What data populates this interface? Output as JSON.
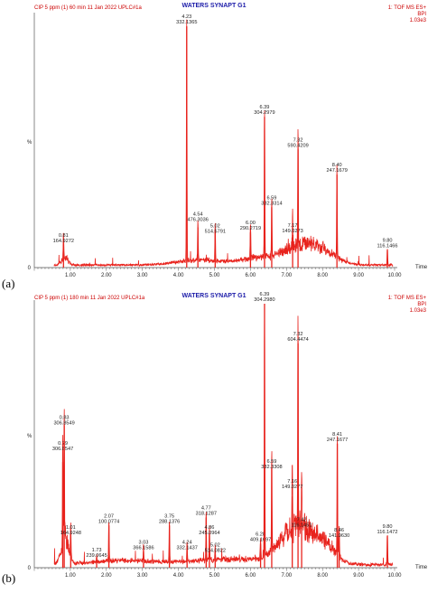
{
  "chart_data": [
    {
      "type": "line",
      "panel": "(a)",
      "header_left": "CIP 5 ppm (1) 60 min 11 Jan 2022 UPLC#1a",
      "title": "WATERS SYNAPT G1",
      "header_right": [
        "1: TOF MS ES+",
        "BPI",
        "1.03e3"
      ],
      "ylabel": "%",
      "xlabel": "Time",
      "xlim": [
        0,
        10
      ],
      "ylim": [
        0,
        100
      ],
      "x_ticks": [
        "1.00",
        "2.00",
        "3.00",
        "4.00",
        "5.00",
        "6.00",
        "7.00",
        "8.00",
        "9.00",
        "10.00"
      ],
      "peaks": [
        {
          "rt": 0.81,
          "rt_label": "0.81",
          "mz": "164.9272",
          "height": 9
        },
        {
          "rt": 4.23,
          "rt_label": "4.23",
          "mz": "332.1365",
          "height": 96
        },
        {
          "rt": 4.54,
          "rt_label": "4.54",
          "mz": "476.3036",
          "height": 16
        },
        {
          "rt": 5.02,
          "rt_label": "5.02",
          "mz": "514.5791",
          "height": 15
        },
        {
          "rt": 6.0,
          "rt_label": "6.00",
          "mz": "290.2719",
          "height": 14
        },
        {
          "rt": 6.39,
          "rt_label": "6.39",
          "mz": "304.2979",
          "height": 60
        },
        {
          "rt": 6.59,
          "rt_label": "6.59",
          "mz": "332.3314",
          "height": 24
        },
        {
          "rt": 7.17,
          "rt_label": "7.17",
          "mz": "149.0273",
          "height": 13
        },
        {
          "rt": 7.32,
          "rt_label": "7.32",
          "mz": "590.4209",
          "height": 47
        },
        {
          "rt": 8.4,
          "rt_label": "8.40",
          "mz": "247.1679",
          "height": 37
        },
        {
          "rt": 9.8,
          "rt_label": "9.80",
          "mz": "116.1466",
          "height": 7
        }
      ]
    },
    {
      "type": "line",
      "panel": "(b)",
      "header_left": "CIP 5 ppm (1) 180 min 11 Jan 2022 UPLC#1a",
      "title": "WATERS SYNAPT G1",
      "header_right": [
        "1: TOF MS ES+",
        "BPI",
        "1.03e3"
      ],
      "ylabel": "%",
      "xlabel": "Time",
      "xlim": [
        0,
        10
      ],
      "ylim": [
        0,
        100
      ],
      "x_ticks": [
        "1.00",
        "2.00",
        "3.00",
        "4.00",
        "5.00",
        "6.00",
        "7.00",
        "8.00",
        "9.00",
        "10.00"
      ],
      "peaks": [
        {
          "rt": 0.79,
          "rt_label": "0.79",
          "mz": "306.8547",
          "height": 40
        },
        {
          "rt": 0.83,
          "rt_label": "0.83",
          "mz": "306.8549",
          "height": 54
        },
        {
          "rt": 1.01,
          "rt_label": "1.01",
          "mz": "164.9248",
          "height": 13
        },
        {
          "rt": 1.73,
          "rt_label": "1.73",
          "mz": "239.0645",
          "height": 3
        },
        {
          "rt": 2.07,
          "rt_label": "2.07",
          "mz": "100.0774",
          "height": 16
        },
        {
          "rt": 3.03,
          "rt_label": "3.03",
          "mz": "366.1586",
          "height": 6
        },
        {
          "rt": 3.75,
          "rt_label": "3.75",
          "mz": "288.1376",
          "height": 16
        },
        {
          "rt": 4.24,
          "rt_label": "4.24",
          "mz": "332.1437",
          "height": 8
        },
        {
          "rt": 4.77,
          "rt_label": "4.77",
          "mz": "318.1287",
          "height": 19
        },
        {
          "rt": 4.86,
          "rt_label": "4.86",
          "mz": "245.0964",
          "height": 13
        },
        {
          "rt": 5.02,
          "rt_label": "5.02",
          "mz": "514.0822",
          "height": 5
        },
        {
          "rt": 6.28,
          "rt_label": "6.28",
          "mz": "409.1697",
          "height": 9
        },
        {
          "rt": 6.39,
          "rt_label": "6.39",
          "mz": "304.2980",
          "height": 100
        },
        {
          "rt": 6.59,
          "rt_label": "6.59",
          "mz": "332.3308",
          "height": 38
        },
        {
          "rt": 7.16,
          "rt_label": "7.16",
          "mz": "149.0277",
          "height": 27
        },
        {
          "rt": 7.32,
          "rt_label": "7.32",
          "mz": "604.4474",
          "height": 85
        },
        {
          "rt": 7.42,
          "rt_label": "7.42",
          "mz": "116.1451",
          "height": 18
        },
        {
          "rt": 8.41,
          "rt_label": "8.41",
          "mz": "247.1677",
          "height": 47
        },
        {
          "rt": 8.46,
          "rt_label": "8.46",
          "mz": "141.9630",
          "height": 12
        },
        {
          "rt": 9.8,
          "rt_label": "9.80",
          "mz": "116.1472",
          "height": 12
        }
      ]
    }
  ]
}
